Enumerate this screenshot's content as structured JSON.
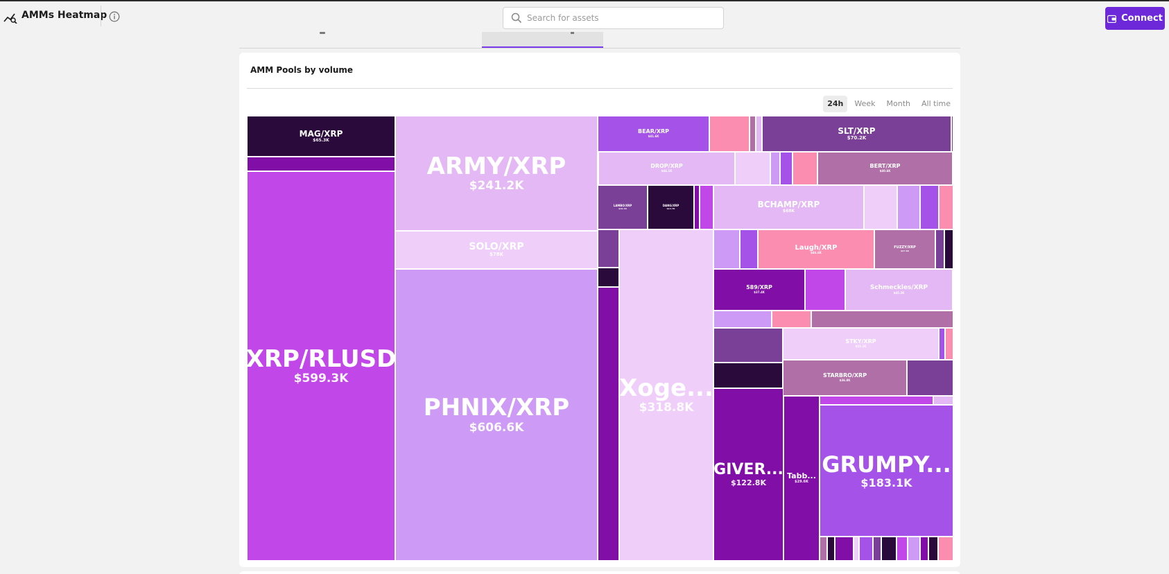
{
  "app": {
    "title": "AMMs Heatmap"
  },
  "search": {
    "placeholder": "Search for assets"
  },
  "header": {
    "connect_label": "Connect"
  },
  "card": {
    "title": "AMM Pools by volume"
  },
  "periods": [
    "24h",
    "Week",
    "Month",
    "All time"
  ],
  "active_period": "24h",
  "colors": {
    "accent": "#6d28d9",
    "darkest": "#2a0a3a",
    "violet": "#c147e8",
    "lavender": "#cd9bf5",
    "light_lavender": "#e3b8f4",
    "pale": "#efcefa",
    "pink": "#fb8db1",
    "mauve": "#b06fa7",
    "grape": "#7a3f96",
    "purple": "#820ea8",
    "medium_purple": "#a452e8"
  },
  "pools": [
    {
      "name": "MAG/XRP",
      "value": "$65.3K"
    },
    {
      "name": "XRP/RLUSD",
      "value": "$599.3K"
    },
    {
      "name": "ARMY/XRP",
      "value": "$241.2K"
    },
    {
      "name": "SOLO/XRP",
      "value": "$78K"
    },
    {
      "name": "PHNIX/XRP",
      "value": "$606.6K"
    },
    {
      "name": "Xoge...",
      "value": "$318.8K"
    },
    {
      "name": "BEAR/XRP",
      "value": "$41.6K"
    },
    {
      "name": "SLT/XRP",
      "value": "$70.2K"
    },
    {
      "name": "DROP/XRP",
      "value": "$44.1K"
    },
    {
      "name": "BERT/XRP",
      "value": "$40.6K"
    },
    {
      "name": "BCHAMP/XRP",
      "value": "$68K"
    },
    {
      "name": "LAMBO/XRP",
      "value": "$16.1K"
    },
    {
      "name": "DANG/XRP",
      "value": "$14.7K"
    },
    {
      "name": "Laugh/XRP",
      "value": "$46.6K"
    },
    {
      "name": "FUZZY/XRP",
      "value": "$27.6K"
    },
    {
      "name": "589/XRP",
      "value": "$37.4K"
    },
    {
      "name": "Schmeckles/XRP",
      "value": "$45.2K"
    },
    {
      "name": "STKY/XRP",
      "value": "$32.1K"
    },
    {
      "name": "STARBRO/XRP",
      "value": "$36.8K"
    },
    {
      "name": "GIVER...",
      "value": "$122.8K"
    },
    {
      "name": "Tabb...",
      "value": "$29.6K"
    },
    {
      "name": "GRUMPY...",
      "value": "$183.1K"
    }
  ]
}
